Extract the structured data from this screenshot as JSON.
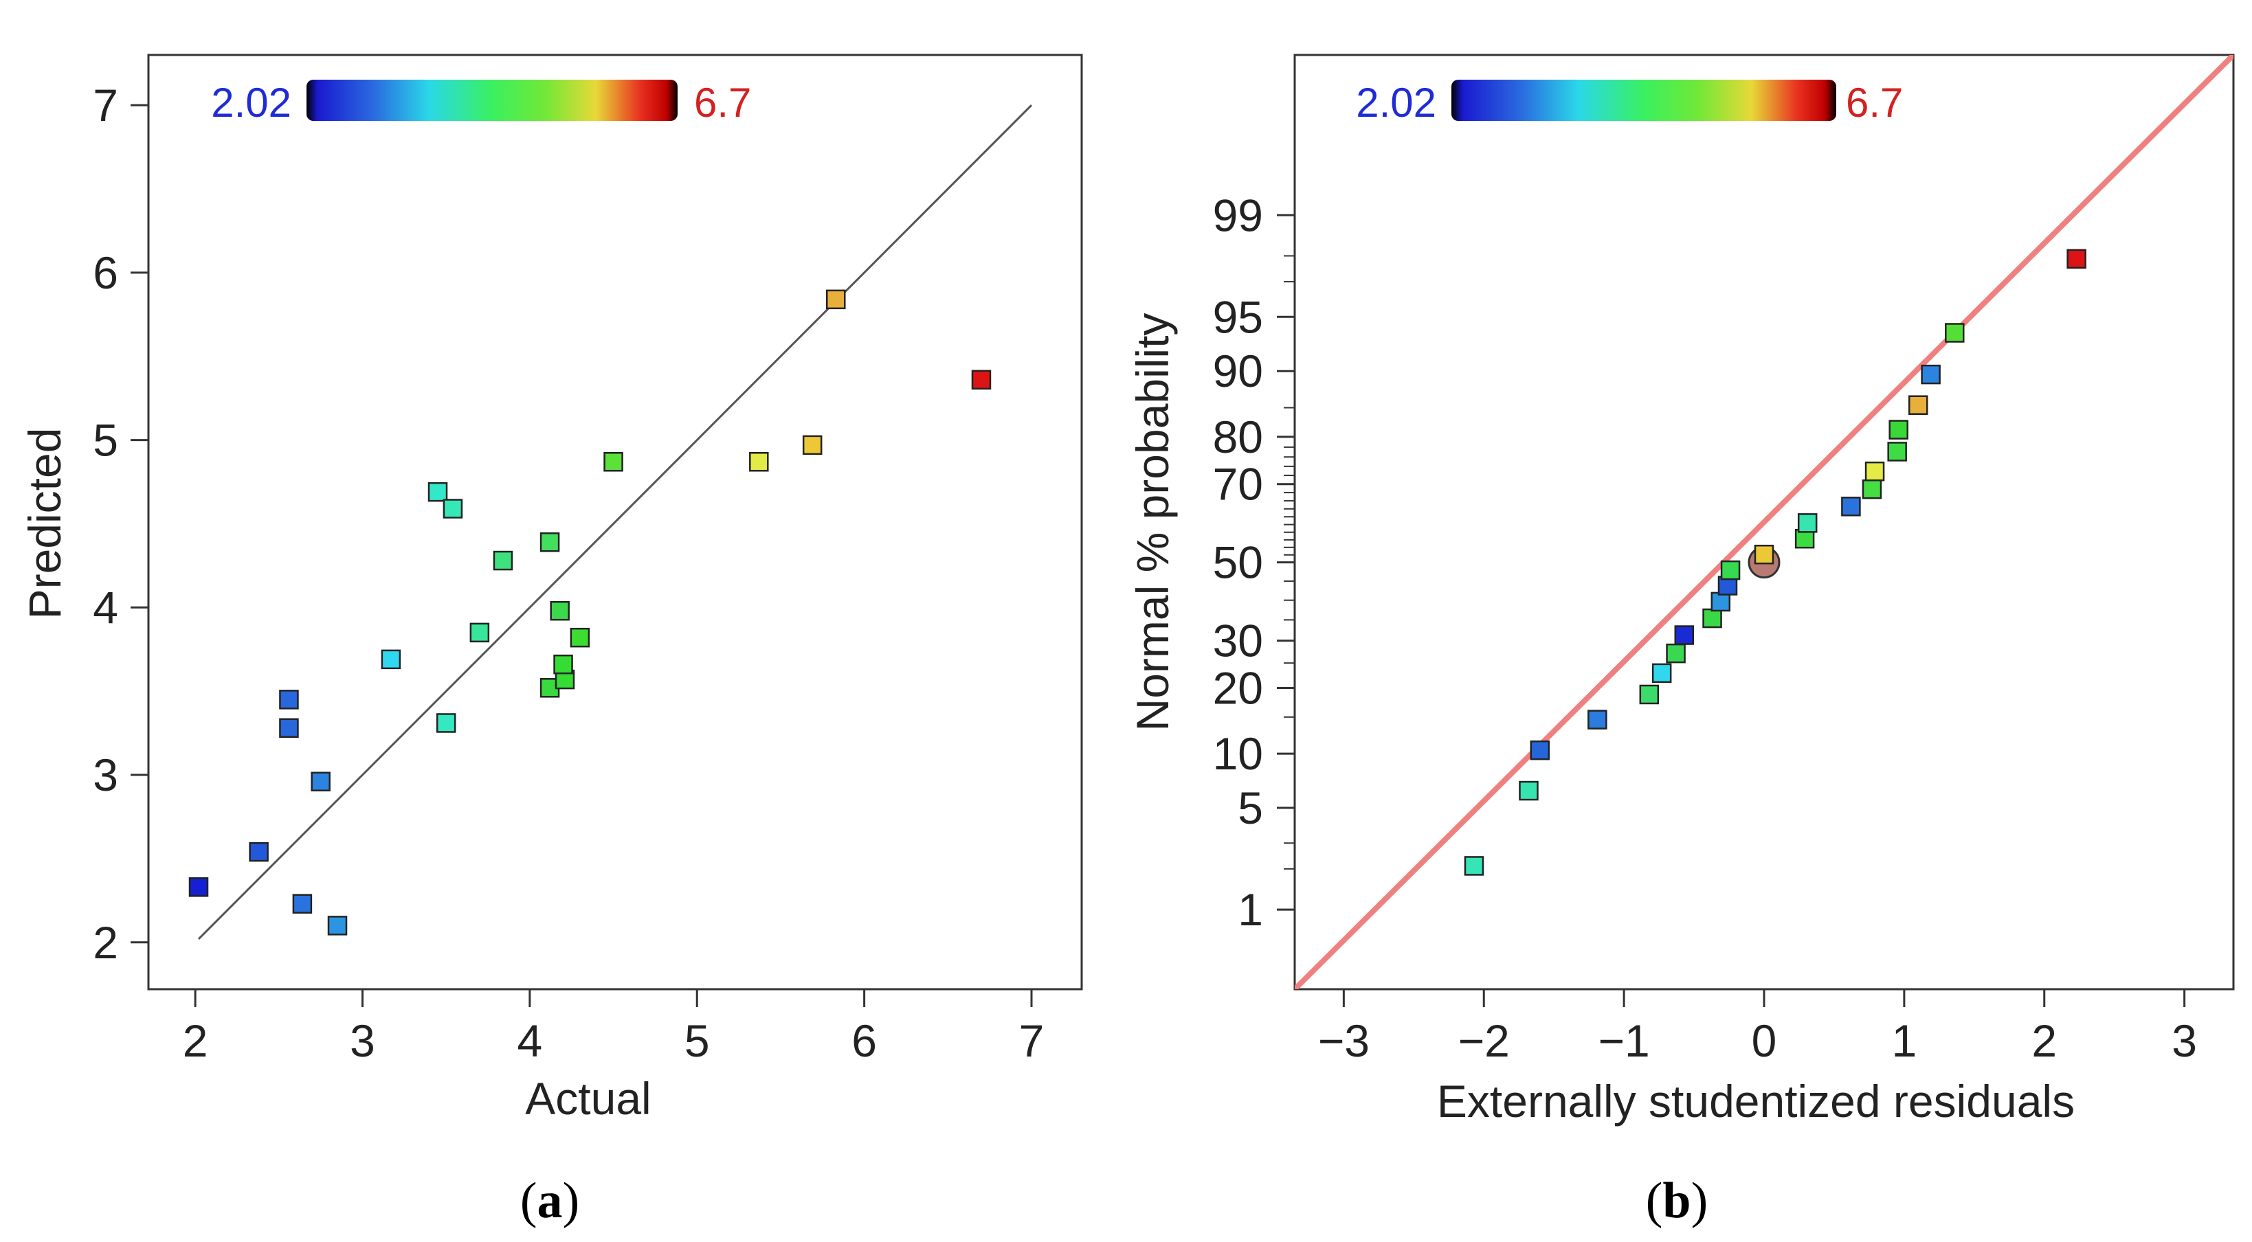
{
  "chart_data": [
    {
      "type": "scatter",
      "panel": "(a)",
      "panel_open": "(",
      "panel_letter": "a",
      "panel_close": ")",
      "xlabel": "Actual",
      "ylabel": "Predicted",
      "xlim": [
        1.72,
        7.3
      ],
      "ylim": [
        1.72,
        7.3
      ],
      "xticks": [
        2,
        3,
        4,
        5,
        6,
        7
      ],
      "yticks": [
        2,
        3,
        4,
        5,
        6,
        7
      ],
      "reference_line": {
        "x": [
          2.02,
          7.0
        ],
        "y": [
          2.02,
          7.0
        ],
        "color": "#555555"
      },
      "colorbar": {
        "min_label": "2.02",
        "max_label": "6.7",
        "min_color": "#1f2bd6",
        "max_color": "#d42020"
      },
      "points": [
        {
          "x": 2.02,
          "y": 2.33,
          "color": "#1420d2"
        },
        {
          "x": 2.38,
          "y": 2.54,
          "color": "#2358d8"
        },
        {
          "x": 2.56,
          "y": 3.45,
          "color": "#2867dc"
        },
        {
          "x": 2.56,
          "y": 3.28,
          "color": "#2867dc"
        },
        {
          "x": 2.64,
          "y": 2.23,
          "color": "#2a73de"
        },
        {
          "x": 2.75,
          "y": 2.96,
          "color": "#2b84e0"
        },
        {
          "x": 2.85,
          "y": 2.1,
          "color": "#2c95e2"
        },
        {
          "x": 3.17,
          "y": 3.69,
          "color": "#2fd8f0"
        },
        {
          "x": 3.45,
          "y": 4.69,
          "color": "#33e8c8"
        },
        {
          "x": 3.5,
          "y": 3.31,
          "color": "#34e8c0"
        },
        {
          "x": 3.54,
          "y": 4.59,
          "color": "#36e8b8"
        },
        {
          "x": 3.7,
          "y": 3.85,
          "color": "#38e69a"
        },
        {
          "x": 3.84,
          "y": 4.28,
          "color": "#3de27e"
        },
        {
          "x": 4.12,
          "y": 4.39,
          "color": "#44de5e"
        },
        {
          "x": 4.18,
          "y": 3.98,
          "color": "#3ad84a"
        },
        {
          "x": 4.12,
          "y": 3.52,
          "color": "#38da3e"
        },
        {
          "x": 4.21,
          "y": 3.57,
          "color": "#35dc34"
        },
        {
          "x": 4.2,
          "y": 3.66,
          "color": "#35dc34"
        },
        {
          "x": 4.3,
          "y": 3.82,
          "color": "#3cdc30"
        },
        {
          "x": 4.5,
          "y": 4.87,
          "color": "#5ce03a"
        },
        {
          "x": 5.37,
          "y": 4.87,
          "color": "#e4ea46"
        },
        {
          "x": 5.69,
          "y": 4.97,
          "color": "#ecc836"
        },
        {
          "x": 5.83,
          "y": 5.84,
          "color": "#e8b03a"
        },
        {
          "x": 6.7,
          "y": 5.36,
          "color": "#dd1414"
        }
      ]
    },
    {
      "type": "scatter",
      "panel": "(b)",
      "panel_open": "(",
      "panel_letter": "b",
      "panel_close": ")",
      "xlabel": "Externally studentized residuals",
      "ylabel": "Normal % probability",
      "xlim": [
        -3.35,
        3.35
      ],
      "xticks": [
        -3,
        -2,
        -1,
        0,
        1,
        2,
        3
      ],
      "xtick_labels": [
        "−3",
        "−2",
        "−1",
        "0",
        "1",
        "2",
        "3"
      ],
      "y_scale": "normal probability",
      "zlim": [
        -2.86,
        3.4
      ],
      "yticks": [
        1,
        5,
        10,
        20,
        30,
        50,
        70,
        80,
        90,
        95,
        99
      ],
      "reference_line": {
        "x": [
          -3.35,
          3.35
        ],
        "z": [
          -2.86,
          3.4
        ],
        "color": "#f08080"
      },
      "colorbar": {
        "min_label": "2.02",
        "max_label": "6.7",
        "min_color": "#1f2bd6",
        "max_color": "#d42020"
      },
      "highlight_point": {
        "x": 0.0,
        "y": 50,
        "fill": "#b87a72"
      },
      "points": [
        {
          "x": -2.07,
          "y": 2.1,
          "color": "#36e4b8"
        },
        {
          "x": -1.68,
          "y": 6.3,
          "color": "#36e4b0"
        },
        {
          "x": -1.6,
          "y": 10.4,
          "color": "#2567db"
        },
        {
          "x": -1.19,
          "y": 14.6,
          "color": "#2a7cdf"
        },
        {
          "x": -0.82,
          "y": 18.8,
          "color": "#3ddc6a"
        },
        {
          "x": -0.73,
          "y": 22.9,
          "color": "#2fd8ee"
        },
        {
          "x": -0.63,
          "y": 27.1,
          "color": "#3ad850"
        },
        {
          "x": -0.57,
          "y": 31.3,
          "color": "#1b2bd4"
        },
        {
          "x": -0.37,
          "y": 35.4,
          "color": "#3ad846"
        },
        {
          "x": -0.31,
          "y": 39.6,
          "color": "#2c95e2"
        },
        {
          "x": -0.26,
          "y": 43.8,
          "color": "#2358d8"
        },
        {
          "x": -0.24,
          "y": 47.9,
          "color": "#36da50"
        },
        {
          "x": 0.0,
          "y": 52.1,
          "color": "#ecc836"
        },
        {
          "x": 0.29,
          "y": 56.3,
          "color": "#3adc40"
        },
        {
          "x": 0.31,
          "y": 60.4,
          "color": "#36e4b0"
        },
        {
          "x": 0.62,
          "y": 64.6,
          "color": "#2a73de"
        },
        {
          "x": 0.77,
          "y": 68.8,
          "color": "#44de40"
        },
        {
          "x": 0.79,
          "y": 72.9,
          "color": "#e4ea46"
        },
        {
          "x": 0.95,
          "y": 77.1,
          "color": "#3ddc44"
        },
        {
          "x": 0.96,
          "y": 81.3,
          "color": "#3ad836"
        },
        {
          "x": 1.1,
          "y": 85.4,
          "color": "#e8b03a"
        },
        {
          "x": 1.19,
          "y": 89.6,
          "color": "#2b84e0"
        },
        {
          "x": 1.36,
          "y": 93.8,
          "color": "#55de38"
        },
        {
          "x": 2.23,
          "y": 97.9,
          "color": "#dd1414"
        }
      ]
    }
  ]
}
